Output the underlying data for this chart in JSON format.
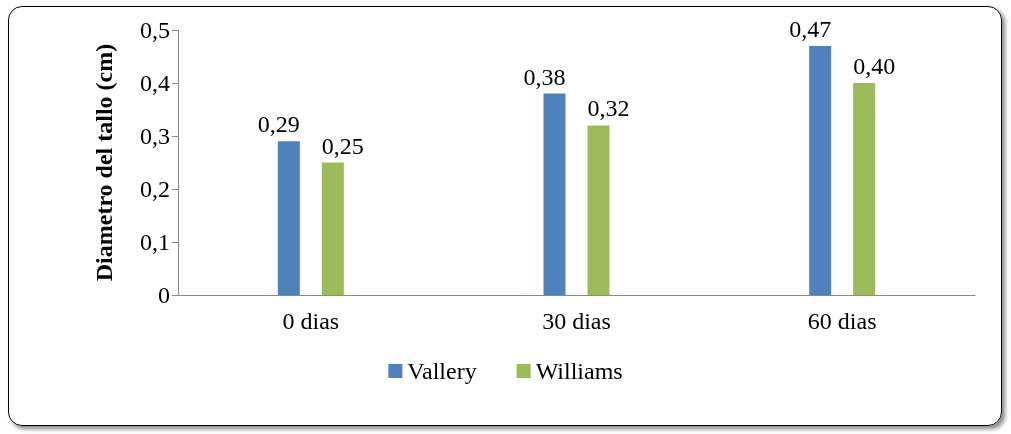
{
  "chart_data": {
    "type": "bar",
    "ylabel": "Diametro del tallo (cm)",
    "categories": [
      "0 dias",
      "30 dias",
      "60 dias"
    ],
    "series": [
      {
        "name": "Vallery",
        "color": "#4f81bd",
        "values": [
          0.29,
          0.38,
          0.47
        ],
        "value_labels": [
          "0,29",
          "0,38",
          "0,47"
        ]
      },
      {
        "name": "Williams",
        "color": "#9bbb59",
        "values": [
          0.25,
          0.32,
          0.4
        ],
        "value_labels": [
          "0,25",
          "0,32",
          "0,40"
        ]
      }
    ],
    "ylim": [
      0,
      0.5
    ],
    "yticks": [
      {
        "value": 0,
        "label": "0"
      },
      {
        "value": 0.1,
        "label": "0,1"
      },
      {
        "value": 0.2,
        "label": "0,2"
      },
      {
        "value": 0.3,
        "label": "0,3"
      },
      {
        "value": 0.4,
        "label": "0,4"
      },
      {
        "value": 0.5,
        "label": "0,5"
      }
    ],
    "grid": false,
    "legend": "bottom"
  }
}
